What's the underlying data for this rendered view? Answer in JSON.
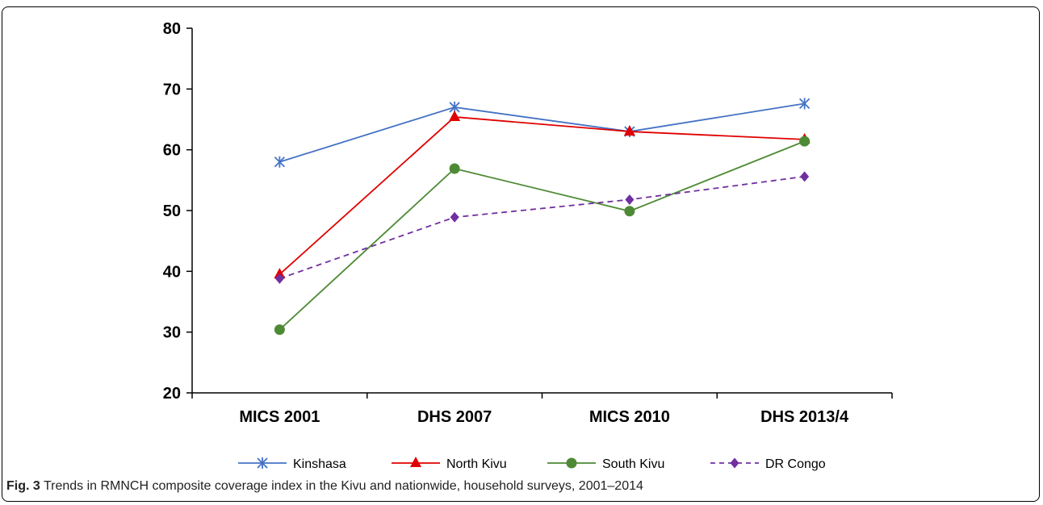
{
  "chart_data": {
    "type": "line",
    "categories": [
      "MICS 2001",
      "DHS 2007",
      "MICS 2010",
      "DHS 2013/4"
    ],
    "ylim": [
      20,
      80
    ],
    "yticks": [
      20,
      30,
      40,
      50,
      60,
      70,
      80
    ],
    "grid": false,
    "legend_position": "bottom",
    "series": [
      {
        "name": "Kinshasa",
        "values": [
          58,
          67,
          63,
          67.6
        ],
        "color": "#4472C4",
        "marker": "asterisk",
        "dashed": false
      },
      {
        "name": "North  Kivu",
        "values": [
          39.5,
          65.4,
          63,
          61.7
        ],
        "color": "#E00000",
        "marker": "triangle",
        "dashed": false
      },
      {
        "name": "South  Kivu",
        "values": [
          30.4,
          56.9,
          49.9,
          61.4
        ],
        "color": "#4E8A35",
        "marker": "circle",
        "dashed": false
      },
      {
        "name": "DR Congo",
        "values": [
          38.8,
          48.9,
          51.8,
          55.6
        ],
        "color": "#7030A0",
        "marker": "diamond",
        "dashed": true
      }
    ]
  },
  "caption": {
    "label": "Fig. 3",
    "text": "Trends in RMNCH composite coverage index in the Kivu and nationwide, household surveys, 2001–2014"
  }
}
